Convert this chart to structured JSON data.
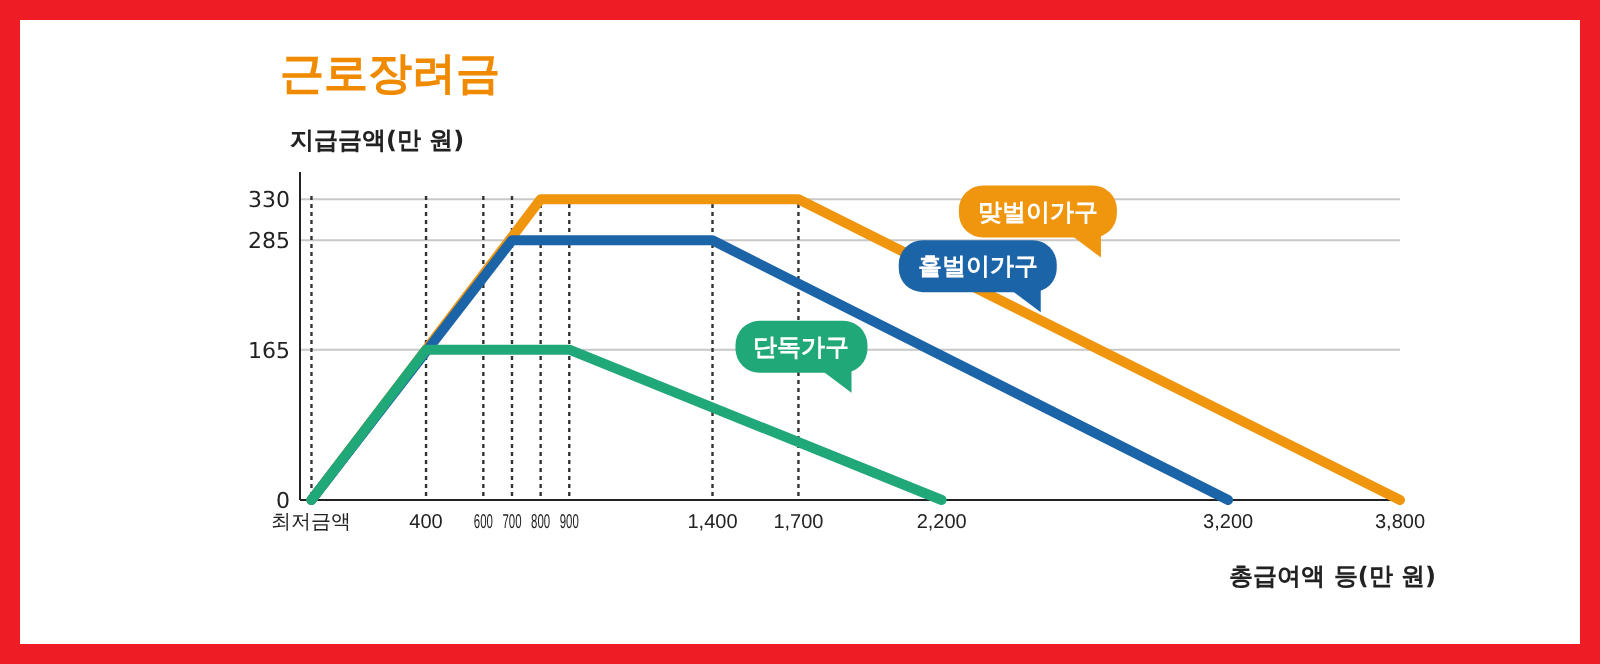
{
  "chart_data": {
    "type": "line",
    "title": "근로장려금",
    "ylabel": "지급금액(만 원)",
    "xlabel": "총급여액 등(만 원)",
    "series": [
      {
        "name": "맞벌이가구",
        "color": "#f0950e",
        "x": [
          0,
          800,
          1700,
          3800
        ],
        "values": [
          0,
          330,
          330,
          0
        ]
      },
      {
        "name": "홑벌이가구",
        "color": "#1c64a8",
        "x": [
          0,
          700,
          1400,
          3200
        ],
        "values": [
          0,
          285,
          285,
          0
        ]
      },
      {
        "name": "단독가구",
        "color": "#21a878",
        "x": [
          0,
          400,
          900,
          2200
        ],
        "values": [
          0,
          165,
          165,
          0
        ]
      }
    ],
    "xlim": [
      -40,
      3800
    ],
    "xticks": [
      {
        "value": 0,
        "label": "최저금액"
      },
      400,
      600,
      700,
      800,
      900,
      {
        "value": 1400,
        "label": "1,400"
      },
      {
        "value": 1700,
        "label": "1,700"
      },
      {
        "value": 2200,
        "label": "2,200"
      },
      {
        "value": 3200,
        "label": "3,200"
      },
      {
        "value": 3800,
        "label": "3,800"
      }
    ],
    "ylim": [
      0,
      360
    ],
    "yticks": [
      0,
      165,
      285,
      330
    ],
    "grid": "y",
    "legend": false,
    "marker": "none",
    "line_style": "solid",
    "ref_lines": [
      {
        "axis": "x",
        "value": 0,
        "line_style": "dotted"
      },
      {
        "axis": "x",
        "value": 400,
        "line_style": "dotted"
      },
      {
        "axis": "x",
        "value": 600,
        "line_style": "dotted"
      },
      {
        "axis": "x",
        "value": 700,
        "line_style": "dotted"
      },
      {
        "axis": "x",
        "value": 800,
        "line_style": "dotted"
      },
      {
        "axis": "x",
        "value": 900,
        "line_style": "dotted"
      },
      {
        "axis": "x",
        "value": 1400,
        "line_style": "dotted"
      },
      {
        "axis": "x",
        "value": 1700,
        "line_style": "dotted"
      }
    ]
  }
}
